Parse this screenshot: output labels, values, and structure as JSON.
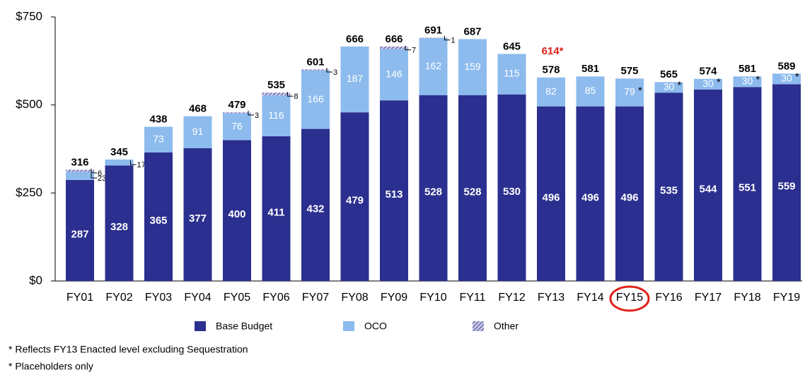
{
  "chart_data": {
    "type": "stacked-bar",
    "categories": [
      "FY01",
      "FY02",
      "FY03",
      "FY04",
      "FY05",
      "FY06",
      "FY07",
      "FY08",
      "FY09",
      "FY10",
      "FY11",
      "FY12",
      "FY13",
      "FY14",
      "FY15",
      "FY16",
      "FY17",
      "FY18",
      "FY19"
    ],
    "series": [
      {
        "name": "Base Budget",
        "color": "#2b2f8f",
        "values": [
          287,
          328,
          365,
          377,
          400,
          411,
          432,
          479,
          513,
          528,
          528,
          530,
          496,
          496,
          496,
          535,
          544,
          551,
          559
        ]
      },
      {
        "name": "OCO",
        "color": "#8dbbee",
        "values": [
          23,
          17,
          73,
          91,
          76,
          116,
          166,
          187,
          146,
          162,
          159,
          115,
          82,
          85,
          79,
          30,
          30,
          30,
          30
        ],
        "marks": [
          null,
          null,
          null,
          null,
          null,
          null,
          null,
          null,
          null,
          null,
          null,
          null,
          null,
          null,
          "*",
          "*",
          "*",
          "*",
          "*"
        ]
      },
      {
        "name": "Other",
        "color": "#7a7ab8",
        "pattern": "hatch",
        "values": [
          6,
          null,
          null,
          null,
          3,
          8,
          3,
          null,
          7,
          1,
          null,
          null,
          null,
          null,
          null,
          null,
          null,
          null,
          null
        ]
      }
    ],
    "totals": [
      316,
      345,
      438,
      468,
      479,
      535,
      601,
      666,
      666,
      691,
      687,
      645,
      578,
      581,
      575,
      565,
      574,
      581,
      589
    ],
    "annotations": [
      {
        "text": "614*",
        "category": "FY13",
        "color": "#e0201b"
      }
    ],
    "highlight": "FY15",
    "ylim": [
      0,
      750
    ],
    "yticks": [
      {
        "value": 0,
        "label": "$0"
      },
      {
        "value": 250,
        "label": "$250"
      },
      {
        "value": 500,
        "label": "$500"
      },
      {
        "value": 750,
        "label": "$750"
      }
    ],
    "footnotes": [
      "* Reflects FY13 Enacted level excluding Sequestration",
      "* Placeholders only"
    ]
  }
}
